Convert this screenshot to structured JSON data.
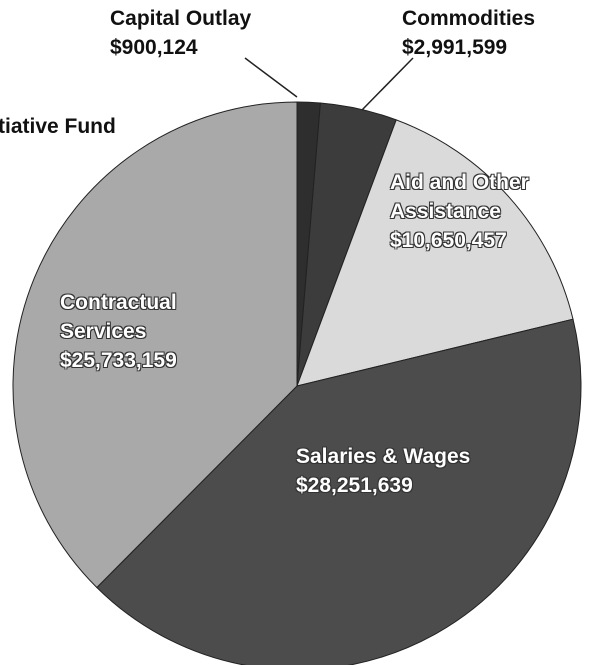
{
  "chart_data": {
    "type": "pie",
    "categories": [
      "Capital Outlay",
      "Commodities",
      "Aid and Other Assistance",
      "Salaries & Wages",
      "Contractual Services"
    ],
    "values": [
      900124,
      2991599,
      10650457,
      28251639,
      25733159
    ],
    "value_labels": [
      "$900,124",
      "$2,991,599",
      "$10,650,457",
      "$28,251,639",
      "$25,733,159"
    ],
    "colors": [
      "#2e2e2e",
      "#3c3c3c",
      "#dadada",
      "#4c4c4c",
      "#a9a9a9"
    ],
    "annotations": [
      "tiative Fund"
    ]
  }
}
